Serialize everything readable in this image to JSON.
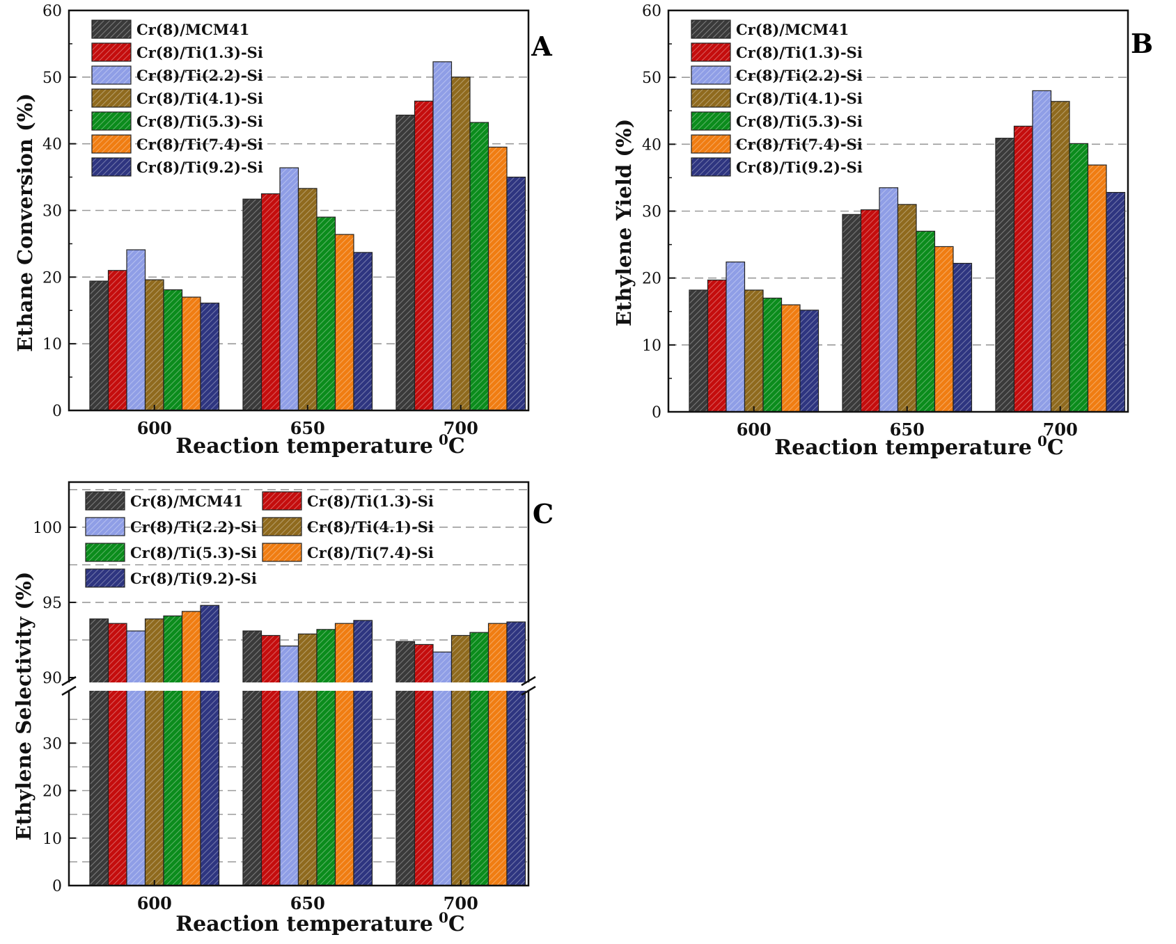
{
  "colors": {
    "Cr(8)/MCM41": "#3a3a3a",
    "Cr(8)/Ti(1.3)-Si": "#c40d0d",
    "Cr(8)/Ti(2.2)-Si": "#8f9ee6",
    "Cr(8)/Ti(4.1)-Si": "#8f6a1e",
    "Cr(8)/Ti(5.3)-Si": "#0b8c1c",
    "Cr(8)/Ti(7.4)-Si": "#f07d12",
    "Cr(8)/Ti(9.2)-Si": "#2e3580"
  },
  "chart_data": [
    {
      "type": "bar",
      "panel_label": "A",
      "xlabel": "Reaction temperature",
      "xlabel_unit": "0C",
      "ylabel": "Ethane Conversion  (%)",
      "categories": [
        "600",
        "650",
        "700"
      ],
      "ylim": [
        0,
        60
      ],
      "yticks": [
        0,
        10,
        20,
        30,
        40,
        50,
        60
      ],
      "grid": "dashed horizontal at 10, 20, 30, 40, 50",
      "legend_position": "top-left",
      "series": [
        {
          "name": "Cr(8)/MCM41",
          "values": [
            19.4,
            31.7,
            44.3
          ]
        },
        {
          "name": "Cr(8)/Ti(1.3)-Si",
          "values": [
            21.0,
            32.5,
            46.4
          ]
        },
        {
          "name": "Cr(8)/Ti(2.2)-Si",
          "values": [
            24.1,
            36.4,
            52.3
          ]
        },
        {
          "name": "Cr(8)/Ti(4.1)-Si",
          "values": [
            19.6,
            33.3,
            50.0
          ]
        },
        {
          "name": "Cr(8)/Ti(5.3)-Si",
          "values": [
            18.1,
            29.0,
            43.2
          ]
        },
        {
          "name": "Cr(8)/Ti(7.4)-Si",
          "values": [
            17.0,
            26.4,
            39.5
          ]
        },
        {
          "name": "Cr(8)/Ti(9.2)-Si",
          "values": [
            16.1,
            23.7,
            35.0
          ]
        }
      ]
    },
    {
      "type": "bar",
      "panel_label": "B",
      "xlabel": "Reaction temperature",
      "xlabel_unit": "0C",
      "ylabel": "Ethylene Yield (%)",
      "categories": [
        "600",
        "650",
        "700"
      ],
      "ylim": [
        0,
        60
      ],
      "yticks": [
        0,
        10,
        20,
        30,
        40,
        50,
        60
      ],
      "grid": "dashed horizontal at 10, 20, 30, 40, 50",
      "legend_position": "top-left",
      "series": [
        {
          "name": "Cr(8)/MCM41",
          "values": [
            18.2,
            29.5,
            40.9
          ]
        },
        {
          "name": "Cr(8)/Ti(1.3)-Si",
          "values": [
            19.7,
            30.2,
            42.7
          ]
        },
        {
          "name": "Cr(8)/Ti(2.2)-Si",
          "values": [
            22.4,
            33.5,
            48.0
          ]
        },
        {
          "name": "Cr(8)/Ti(4.1)-Si",
          "values": [
            18.2,
            31.0,
            46.4
          ]
        },
        {
          "name": "Cr(8)/Ti(5.3)-Si",
          "values": [
            17.0,
            27.0,
            40.1
          ]
        },
        {
          "name": "Cr(8)/Ti(7.4)-Si",
          "values": [
            16.0,
            24.7,
            36.9
          ]
        },
        {
          "name": "Cr(8)/Ti(9.2)-Si",
          "values": [
            15.2,
            22.2,
            32.8
          ]
        }
      ]
    },
    {
      "type": "bar",
      "panel_label": "C",
      "xlabel": "Reaction temperature",
      "xlabel_unit": "0C",
      "ylabel": "Ethylene Selectivity (%)",
      "categories": [
        "600",
        "650",
        "700"
      ],
      "axis_break": "y axis broken between 40 and 90",
      "yticks": [
        0,
        10,
        20,
        30,
        90,
        95,
        100
      ],
      "ylim_lower": [
        0,
        40
      ],
      "ylim_upper": [
        90,
        103
      ],
      "grid": "dashed horizontal",
      "legend_position": "top-left, two columns",
      "series": [
        {
          "name": "Cr(8)/MCM41",
          "values": [
            93.9,
            93.1,
            92.4
          ]
        },
        {
          "name": "Cr(8)/Ti(1.3)-Si",
          "values": [
            93.6,
            92.8,
            92.2
          ]
        },
        {
          "name": "Cr(8)/Ti(2.2)-Si",
          "values": [
            93.1,
            92.1,
            91.7
          ]
        },
        {
          "name": "Cr(8)/Ti(4.1)-Si",
          "values": [
            93.9,
            92.9,
            92.8
          ]
        },
        {
          "name": "Cr(8)/Ti(5.3)-Si",
          "values": [
            94.1,
            93.2,
            93.0
          ]
        },
        {
          "name": "Cr(8)/Ti(7.4)-Si",
          "values": [
            94.4,
            93.6,
            93.6
          ]
        },
        {
          "name": "Cr(8)/Ti(9.2)-Si",
          "values": [
            94.8,
            93.8,
            93.7
          ]
        }
      ]
    }
  ]
}
